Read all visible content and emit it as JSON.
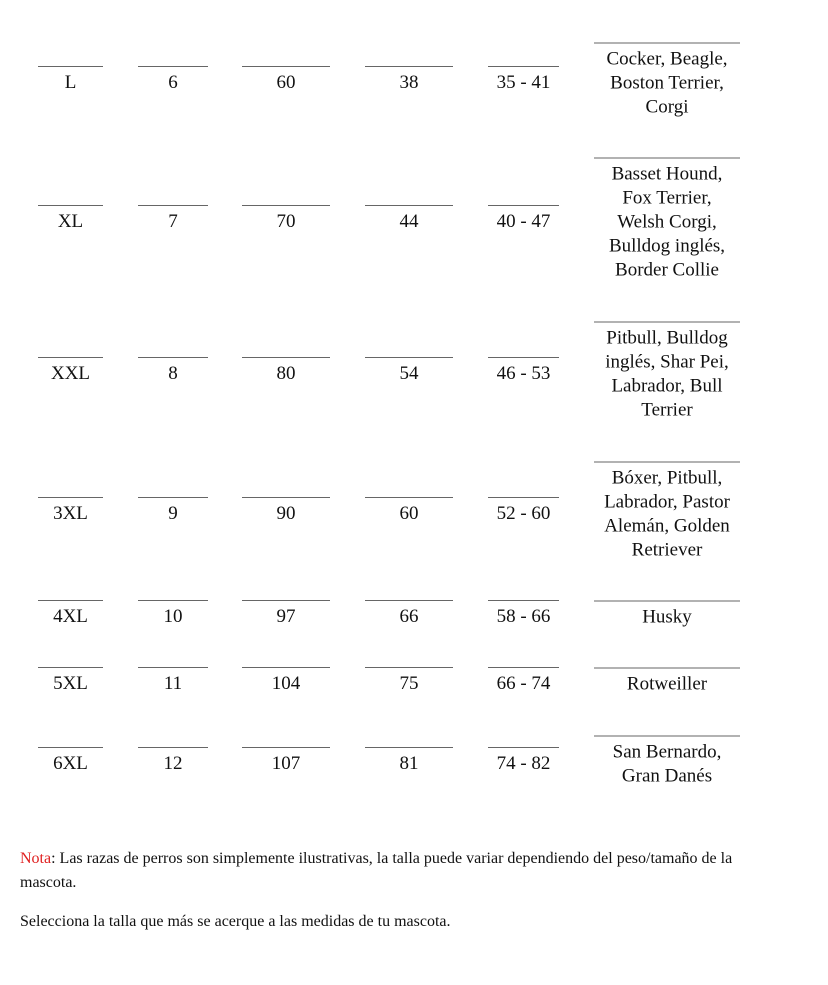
{
  "rows": [
    {
      "size": "L",
      "number": "6",
      "c2": "60",
      "c3": "38",
      "range": "35 - 41",
      "breeds": [
        "Cocker, Beagle,",
        "Boston Terrier,",
        "Corgi"
      ]
    },
    {
      "size": "XL",
      "number": "7",
      "c2": "70",
      "c3": "44",
      "range": "40 - 47",
      "breeds": [
        "Basset Hound,",
        "Fox Terrier,",
        "Welsh Corgi,",
        "Bulldog inglés,",
        "Border Collie"
      ]
    },
    {
      "size": "XXL",
      "number": "8",
      "c2": "80",
      "c3": "54",
      "range": "46 - 53",
      "breeds": [
        "Pitbull, Bulldog",
        "inglés, Shar Pei,",
        "Labrador, Bull",
        "Terrier"
      ]
    },
    {
      "size": "3XL",
      "number": "9",
      "c2": "90",
      "c3": "60",
      "range": "52 - 60",
      "breeds": [
        "Bóxer, Pitbull,",
        "Labrador, Pastor",
        "Alemán, Golden",
        "Retriever"
      ]
    },
    {
      "size": "4XL",
      "number": "10",
      "c2": "97",
      "c3": "66",
      "range": "58 - 66",
      "breeds": [
        "Husky"
      ]
    },
    {
      "size": "5XL",
      "number": "11",
      "c2": "104",
      "c3": "75",
      "range": "66 - 74",
      "breeds": [
        "Rotweiller"
      ]
    },
    {
      "size": "6XL",
      "number": "12",
      "c2": "107",
      "c3": "81",
      "range": "74 - 82",
      "breeds": [
        "San Bernardo,",
        "Gran Danés"
      ]
    }
  ],
  "note": {
    "label": "Nota",
    "text": ": Las razas de perros son simplemente ilustrativas, la talla puede variar dependiendo del peso/tamaño de la mascota.",
    "label_color": "#e02020"
  },
  "tip": "Selecciona la talla que más se acerque a las medidas de tu mascota."
}
